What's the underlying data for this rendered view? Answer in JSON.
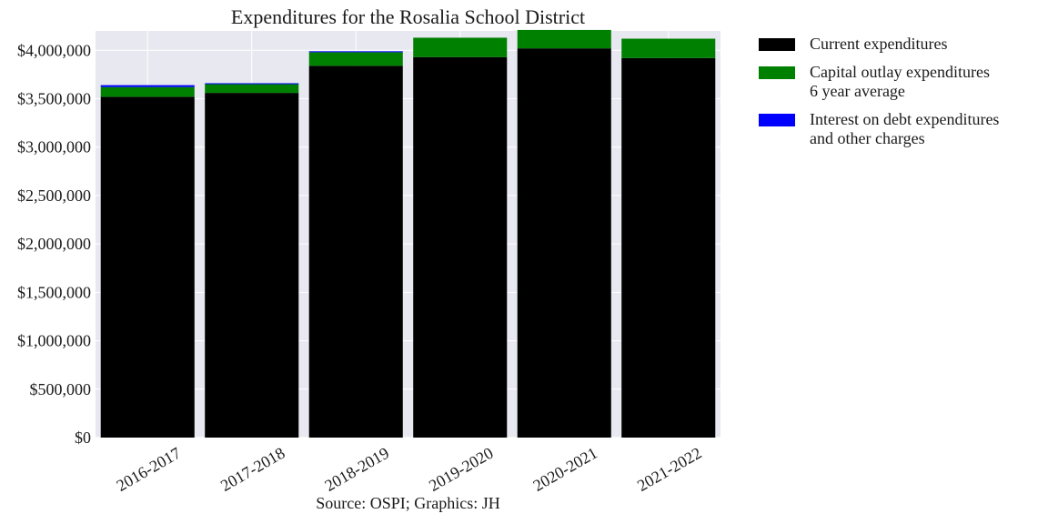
{
  "chart_data": {
    "type": "bar",
    "stacked": true,
    "title": "Expenditures for the Rosalia School District",
    "source": "Source: OSPI; Graphics: JH",
    "categories": [
      "2016-2017",
      "2017-2018",
      "2018-2019",
      "2019-2020",
      "2020-2021",
      "2021-2022"
    ],
    "series": [
      {
        "name": "Current expenditures",
        "color": "#000000",
        "values": [
          3520000,
          3560000,
          3840000,
          3930000,
          4020000,
          3920000
        ]
      },
      {
        "name": "Capital outlay expenditures\n6 year average",
        "color": "#008000",
        "values": [
          100000,
          90000,
          140000,
          200000,
          190000,
          200000
        ]
      },
      {
        "name": "Interest on debt expenditures\nand other charges",
        "color": "#0000ff",
        "values": [
          20000,
          10000,
          10000,
          0,
          0,
          0
        ]
      }
    ],
    "ylim": [
      0,
      4200000
    ],
    "yticks": [
      0,
      500000,
      1000000,
      1500000,
      2000000,
      2500000,
      3000000,
      3500000,
      4000000
    ],
    "ytick_labels": [
      "$0",
      "$500,000",
      "$1,000,000",
      "$1,500,000",
      "$2,000,000",
      "$2,500,000",
      "$3,000,000",
      "$3,500,000",
      "$4,000,000"
    ],
    "grid": true,
    "legend_position": "outside-right",
    "plot_background": "#e8e8f0"
  }
}
